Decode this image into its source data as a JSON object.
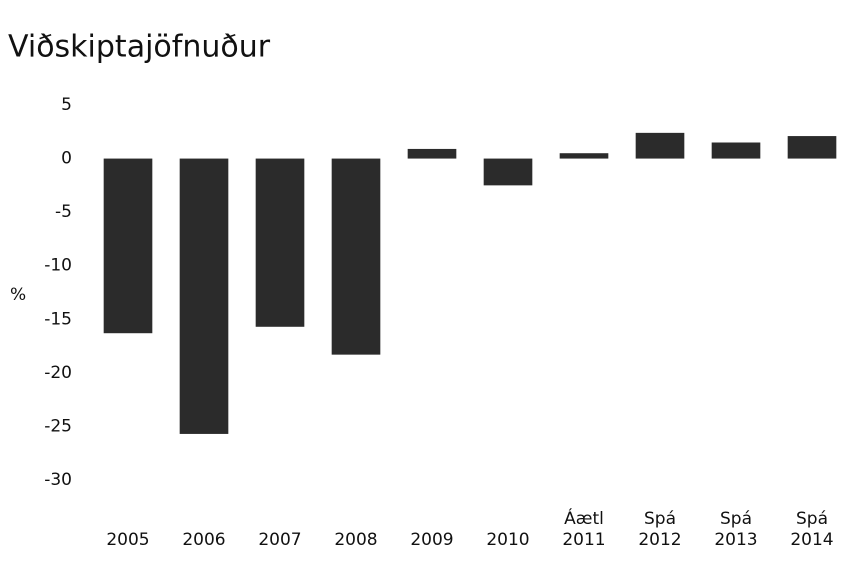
{
  "chart_data": {
    "type": "bar",
    "title": "Viðskiptajöfnuður",
    "y_label": "%",
    "categories": [
      "2005",
      "2006",
      "2007",
      "2008",
      "2009",
      "2010",
      "Áætl\n2011",
      "Spá\n2012",
      "Spá\n2013",
      "Spá\n2014"
    ],
    "values": [
      -16.3,
      -25.7,
      -15.7,
      -18.3,
      0.9,
      -2.5,
      0.5,
      2.4,
      1.5,
      2.1
    ],
    "color": "#2b2b2b",
    "ylim": [
      -30,
      5
    ],
    "yticks": [
      5,
      0,
      -5,
      -10,
      -15,
      -20,
      -25,
      -30
    ],
    "grid": false
  }
}
